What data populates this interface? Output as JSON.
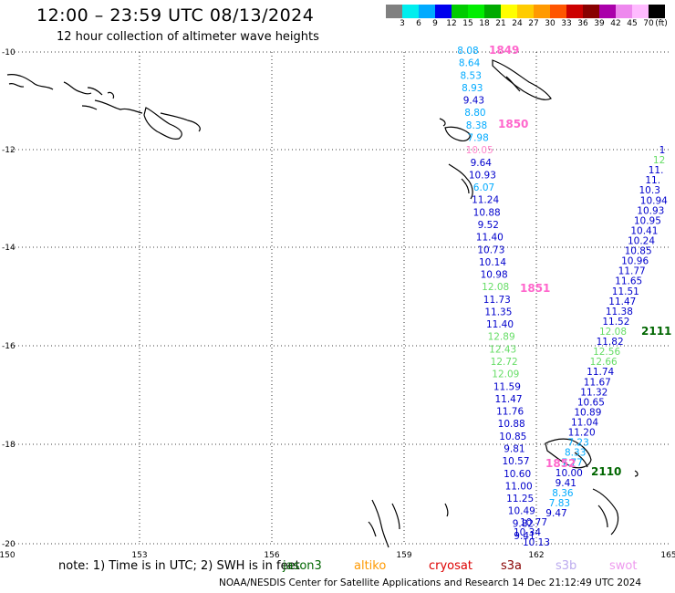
{
  "header": {
    "title": "12:00 – 23:59 UTC 08/13/2024",
    "subtitle": "12 hour collection of altimeter wave heights"
  },
  "colorbar": {
    "unit_label": "(ft)",
    "colors": [
      "#808080",
      "#00eeee",
      "#00aaff",
      "#0000ee",
      "#00cc00",
      "#00ee00",
      "#00aa00",
      "#ffff00",
      "#ffcc00",
      "#ff9900",
      "#ff5500",
      "#cc0000",
      "#880000",
      "#aa00aa",
      "#ee88ee",
      "#ffbbff",
      "#000000"
    ],
    "labels": [
      "3",
      "6",
      "9",
      "12",
      "15",
      "18",
      "21",
      "24",
      "27",
      "30",
      "33",
      "36",
      "39",
      "42",
      "45",
      "70"
    ]
  },
  "axes": {
    "lon_ticks": [
      "150",
      "153",
      "156",
      "159",
      "162",
      "165"
    ],
    "lat_ticks": [
      "-10",
      "-12",
      "-14",
      "-16",
      "-18",
      "-20"
    ]
  },
  "passes": [
    {
      "label": "1849",
      "color": "#ff66cc"
    },
    {
      "label": "1850",
      "color": "#ff66cc"
    },
    {
      "label": "1851",
      "color": "#ff66cc"
    },
    {
      "label": "1852",
      "color": "#ff66cc"
    },
    {
      "label": "2111",
      "color": "#006600"
    },
    {
      "label": "2110",
      "color": "#006600"
    }
  ],
  "track_west": {
    "values": [
      {
        "v": "8.08",
        "c": "#00aaff"
      },
      {
        "v": "8.64",
        "c": "#00aaff"
      },
      {
        "v": "8.53",
        "c": "#00aaff"
      },
      {
        "v": "8.93",
        "c": "#00aaff"
      },
      {
        "v": "9.43",
        "c": "#0000cc"
      },
      {
        "v": "8.80",
        "c": "#00aaff"
      },
      {
        "v": "8.38",
        "c": "#00aaff"
      },
      {
        "v": "7.98",
        "c": "#00aaff"
      },
      {
        "v": "10.05",
        "c": "#ff88cc"
      },
      {
        "v": "9.64",
        "c": "#0000cc"
      },
      {
        "v": "10.93",
        "c": "#0000cc"
      },
      {
        "v": "6.07",
        "c": "#00aaff"
      },
      {
        "v": "11.24",
        "c": "#0000cc"
      },
      {
        "v": "10.88",
        "c": "#0000cc"
      },
      {
        "v": "9.52",
        "c": "#0000cc"
      },
      {
        "v": "11.40",
        "c": "#0000cc"
      },
      {
        "v": "10.73",
        "c": "#0000cc"
      },
      {
        "v": "10.14",
        "c": "#0000cc"
      },
      {
        "v": "10.98",
        "c": "#0000cc"
      },
      {
        "v": "12.08",
        "c": "#66dd66"
      },
      {
        "v": "11.73",
        "c": "#0000cc"
      },
      {
        "v": "11.35",
        "c": "#0000cc"
      },
      {
        "v": "11.40",
        "c": "#0000cc"
      },
      {
        "v": "12.89",
        "c": "#66dd66"
      },
      {
        "v": "12.43",
        "c": "#66dd66"
      },
      {
        "v": "12.72",
        "c": "#66dd66"
      },
      {
        "v": "12.09",
        "c": "#66dd66"
      },
      {
        "v": "11.59",
        "c": "#0000cc"
      },
      {
        "v": "11.47",
        "c": "#0000cc"
      },
      {
        "v": "11.76",
        "c": "#0000cc"
      },
      {
        "v": "10.88",
        "c": "#0000cc"
      },
      {
        "v": "10.85",
        "c": "#0000cc"
      },
      {
        "v": "9.81",
        "c": "#0000cc"
      },
      {
        "v": "10.57",
        "c": "#0000cc"
      },
      {
        "v": "10.60",
        "c": "#0000cc"
      },
      {
        "v": "11.00",
        "c": "#0000cc"
      },
      {
        "v": "11.25",
        "c": "#0000cc"
      },
      {
        "v": "10.49",
        "c": "#0000cc"
      },
      {
        "v": "9.82",
        "c": "#0000cc"
      },
      {
        "v": "9.41",
        "c": "#0000cc"
      }
    ],
    "extra": [
      {
        "v": "10.77",
        "c": "#0000cc"
      },
      {
        "v": "10.34",
        "c": "#0000cc"
      },
      {
        "v": "10.13",
        "c": "#0000cc"
      }
    ]
  },
  "track_east": {
    "values": [
      {
        "v": "1",
        "c": "#0000cc"
      },
      {
        "v": "12",
        "c": "#66dd66"
      },
      {
        "v": "11.",
        "c": "#0000cc"
      },
      {
        "v": "11.",
        "c": "#0000cc"
      },
      {
        "v": "10.3",
        "c": "#0000cc"
      },
      {
        "v": "10.94",
        "c": "#0000cc"
      },
      {
        "v": "10.93",
        "c": "#0000cc"
      },
      {
        "v": "10.95",
        "c": "#0000cc"
      },
      {
        "v": "10.41",
        "c": "#0000cc"
      },
      {
        "v": "10.24",
        "c": "#0000cc"
      },
      {
        "v": "10.85",
        "c": "#0000cc"
      },
      {
        "v": "10.96",
        "c": "#0000cc"
      },
      {
        "v": "11.77",
        "c": "#0000cc"
      },
      {
        "v": "11.65",
        "c": "#0000cc"
      },
      {
        "v": "11.51",
        "c": "#0000cc"
      },
      {
        "v": "11.47",
        "c": "#0000cc"
      },
      {
        "v": "11.38",
        "c": "#0000cc"
      },
      {
        "v": "11.52",
        "c": "#0000cc"
      },
      {
        "v": "12.08",
        "c": "#66dd66"
      },
      {
        "v": "11.82",
        "c": "#0000cc"
      },
      {
        "v": "12.56",
        "c": "#66dd66"
      },
      {
        "v": "12.66",
        "c": "#66dd66"
      },
      {
        "v": "11.74",
        "c": "#0000cc"
      },
      {
        "v": "11.67",
        "c": "#0000cc"
      },
      {
        "v": "11.32",
        "c": "#0000cc"
      },
      {
        "v": "10.65",
        "c": "#0000cc"
      },
      {
        "v": "10.89",
        "c": "#0000cc"
      },
      {
        "v": "11.04",
        "c": "#0000cc"
      },
      {
        "v": "11.20",
        "c": "#0000cc"
      },
      {
        "v": "7.23",
        "c": "#00aaff"
      },
      {
        "v": "8.33",
        "c": "#00aaff"
      },
      {
        "v": "7.77",
        "c": "#00aaff"
      },
      {
        "v": "10.00",
        "c": "#0000cc"
      },
      {
        "v": "9.41",
        "c": "#0000cc"
      },
      {
        "v": "8.36",
        "c": "#00aaff"
      },
      {
        "v": "7.83",
        "c": "#00aaff"
      },
      {
        "v": "9.47",
        "c": "#0000cc"
      }
    ]
  },
  "footer": {
    "note": "note:  1) Time is in UTC;  2) SWH is in feet",
    "legend": [
      {
        "label": "jason3",
        "color": "#006600"
      },
      {
        "label": "altiko",
        "color": "#ff9900"
      },
      {
        "label": "cryosat",
        "color": "#dd0000"
      },
      {
        "label": "s3a",
        "color": "#880000"
      },
      {
        "label": "s3b",
        "color": "#bbaaee"
      },
      {
        "label": "swot",
        "color": "#ee99ee"
      }
    ],
    "credit": "NOAA/NESDIS Center for Satellite Applications and Research    14 Dec 21:12:49 UTC 2024"
  }
}
